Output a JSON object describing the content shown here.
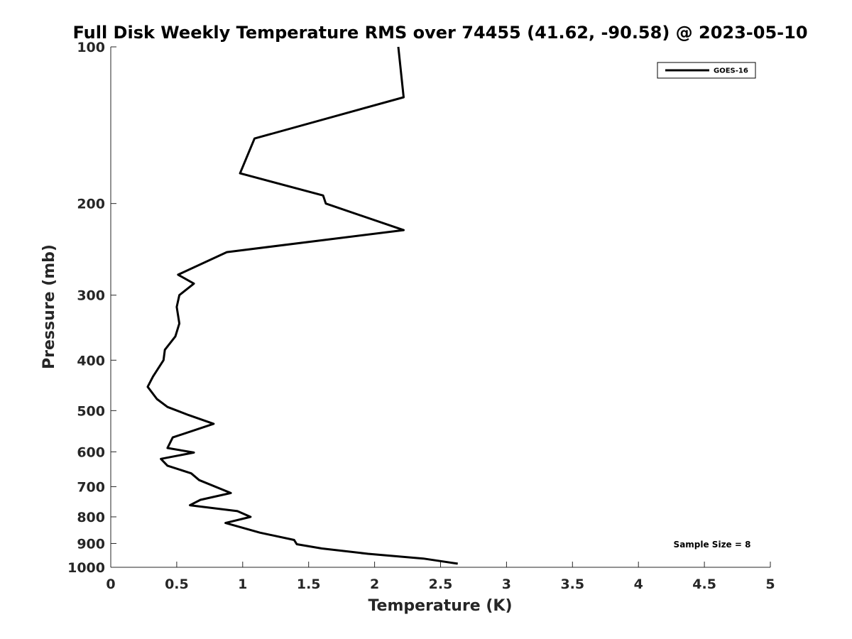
{
  "chart_data": {
    "type": "line",
    "title": "Full Disk Weekly Temperature RMS over 74455 (41.62, -90.58) @ 2023-05-10",
    "xlabel": "Temperature (K)",
    "ylabel": "Pressure (mb)",
    "xlim": [
      0,
      5
    ],
    "ylim": [
      100,
      1000
    ],
    "yscale": "log",
    "y_reversed": true,
    "grid": false,
    "legend_position": "top-right",
    "xticks": [
      0,
      0.5,
      1,
      1.5,
      2,
      2.5,
      3,
      3.5,
      4,
      4.5,
      5
    ],
    "xtick_labels": [
      "0",
      "0.5",
      "1",
      "1.5",
      "2",
      "2.5",
      "3",
      "3.5",
      "4",
      "4.5",
      "5"
    ],
    "yticks": [
      100,
      200,
      300,
      400,
      500,
      600,
      700,
      800,
      900,
      1000
    ],
    "ytick_labels": [
      "100",
      "200",
      "300",
      "400",
      "500",
      "600",
      "700",
      "800",
      "900",
      "1000"
    ],
    "series": [
      {
        "name": "GOES-16",
        "color": "#000000",
        "points": [
          [
            2.18,
            100
          ],
          [
            2.22,
            125
          ],
          [
            1.09,
            150
          ],
          [
            0.98,
            175
          ],
          [
            1.61,
            193
          ],
          [
            1.63,
            200
          ],
          [
            2.22,
            225
          ],
          [
            0.88,
            248
          ],
          [
            0.51,
            274
          ],
          [
            0.63,
            285
          ],
          [
            0.52,
            300
          ],
          [
            0.5,
            316
          ],
          [
            0.52,
            340
          ],
          [
            0.49,
            360
          ],
          [
            0.41,
            382
          ],
          [
            0.4,
            400
          ],
          [
            0.32,
            430
          ],
          [
            0.28,
            450
          ],
          [
            0.35,
            475
          ],
          [
            0.43,
            492
          ],
          [
            0.59,
            510
          ],
          [
            0.78,
            530
          ],
          [
            0.47,
            563
          ],
          [
            0.43,
            590
          ],
          [
            0.63,
            602
          ],
          [
            0.38,
            619
          ],
          [
            0.43,
            638
          ],
          [
            0.61,
            660
          ],
          [
            0.67,
            680
          ],
          [
            0.91,
            720
          ],
          [
            0.68,
            742
          ],
          [
            0.6,
            760
          ],
          [
            0.96,
            780
          ],
          [
            1.06,
            800
          ],
          [
            0.87,
            822
          ],
          [
            1.13,
            858
          ],
          [
            1.39,
            886
          ],
          [
            1.41,
            903
          ],
          [
            1.6,
            920
          ],
          [
            1.95,
            942
          ],
          [
            2.37,
            962
          ],
          [
            2.63,
            984
          ]
        ]
      }
    ],
    "annotation": "Sample Size = 8"
  }
}
